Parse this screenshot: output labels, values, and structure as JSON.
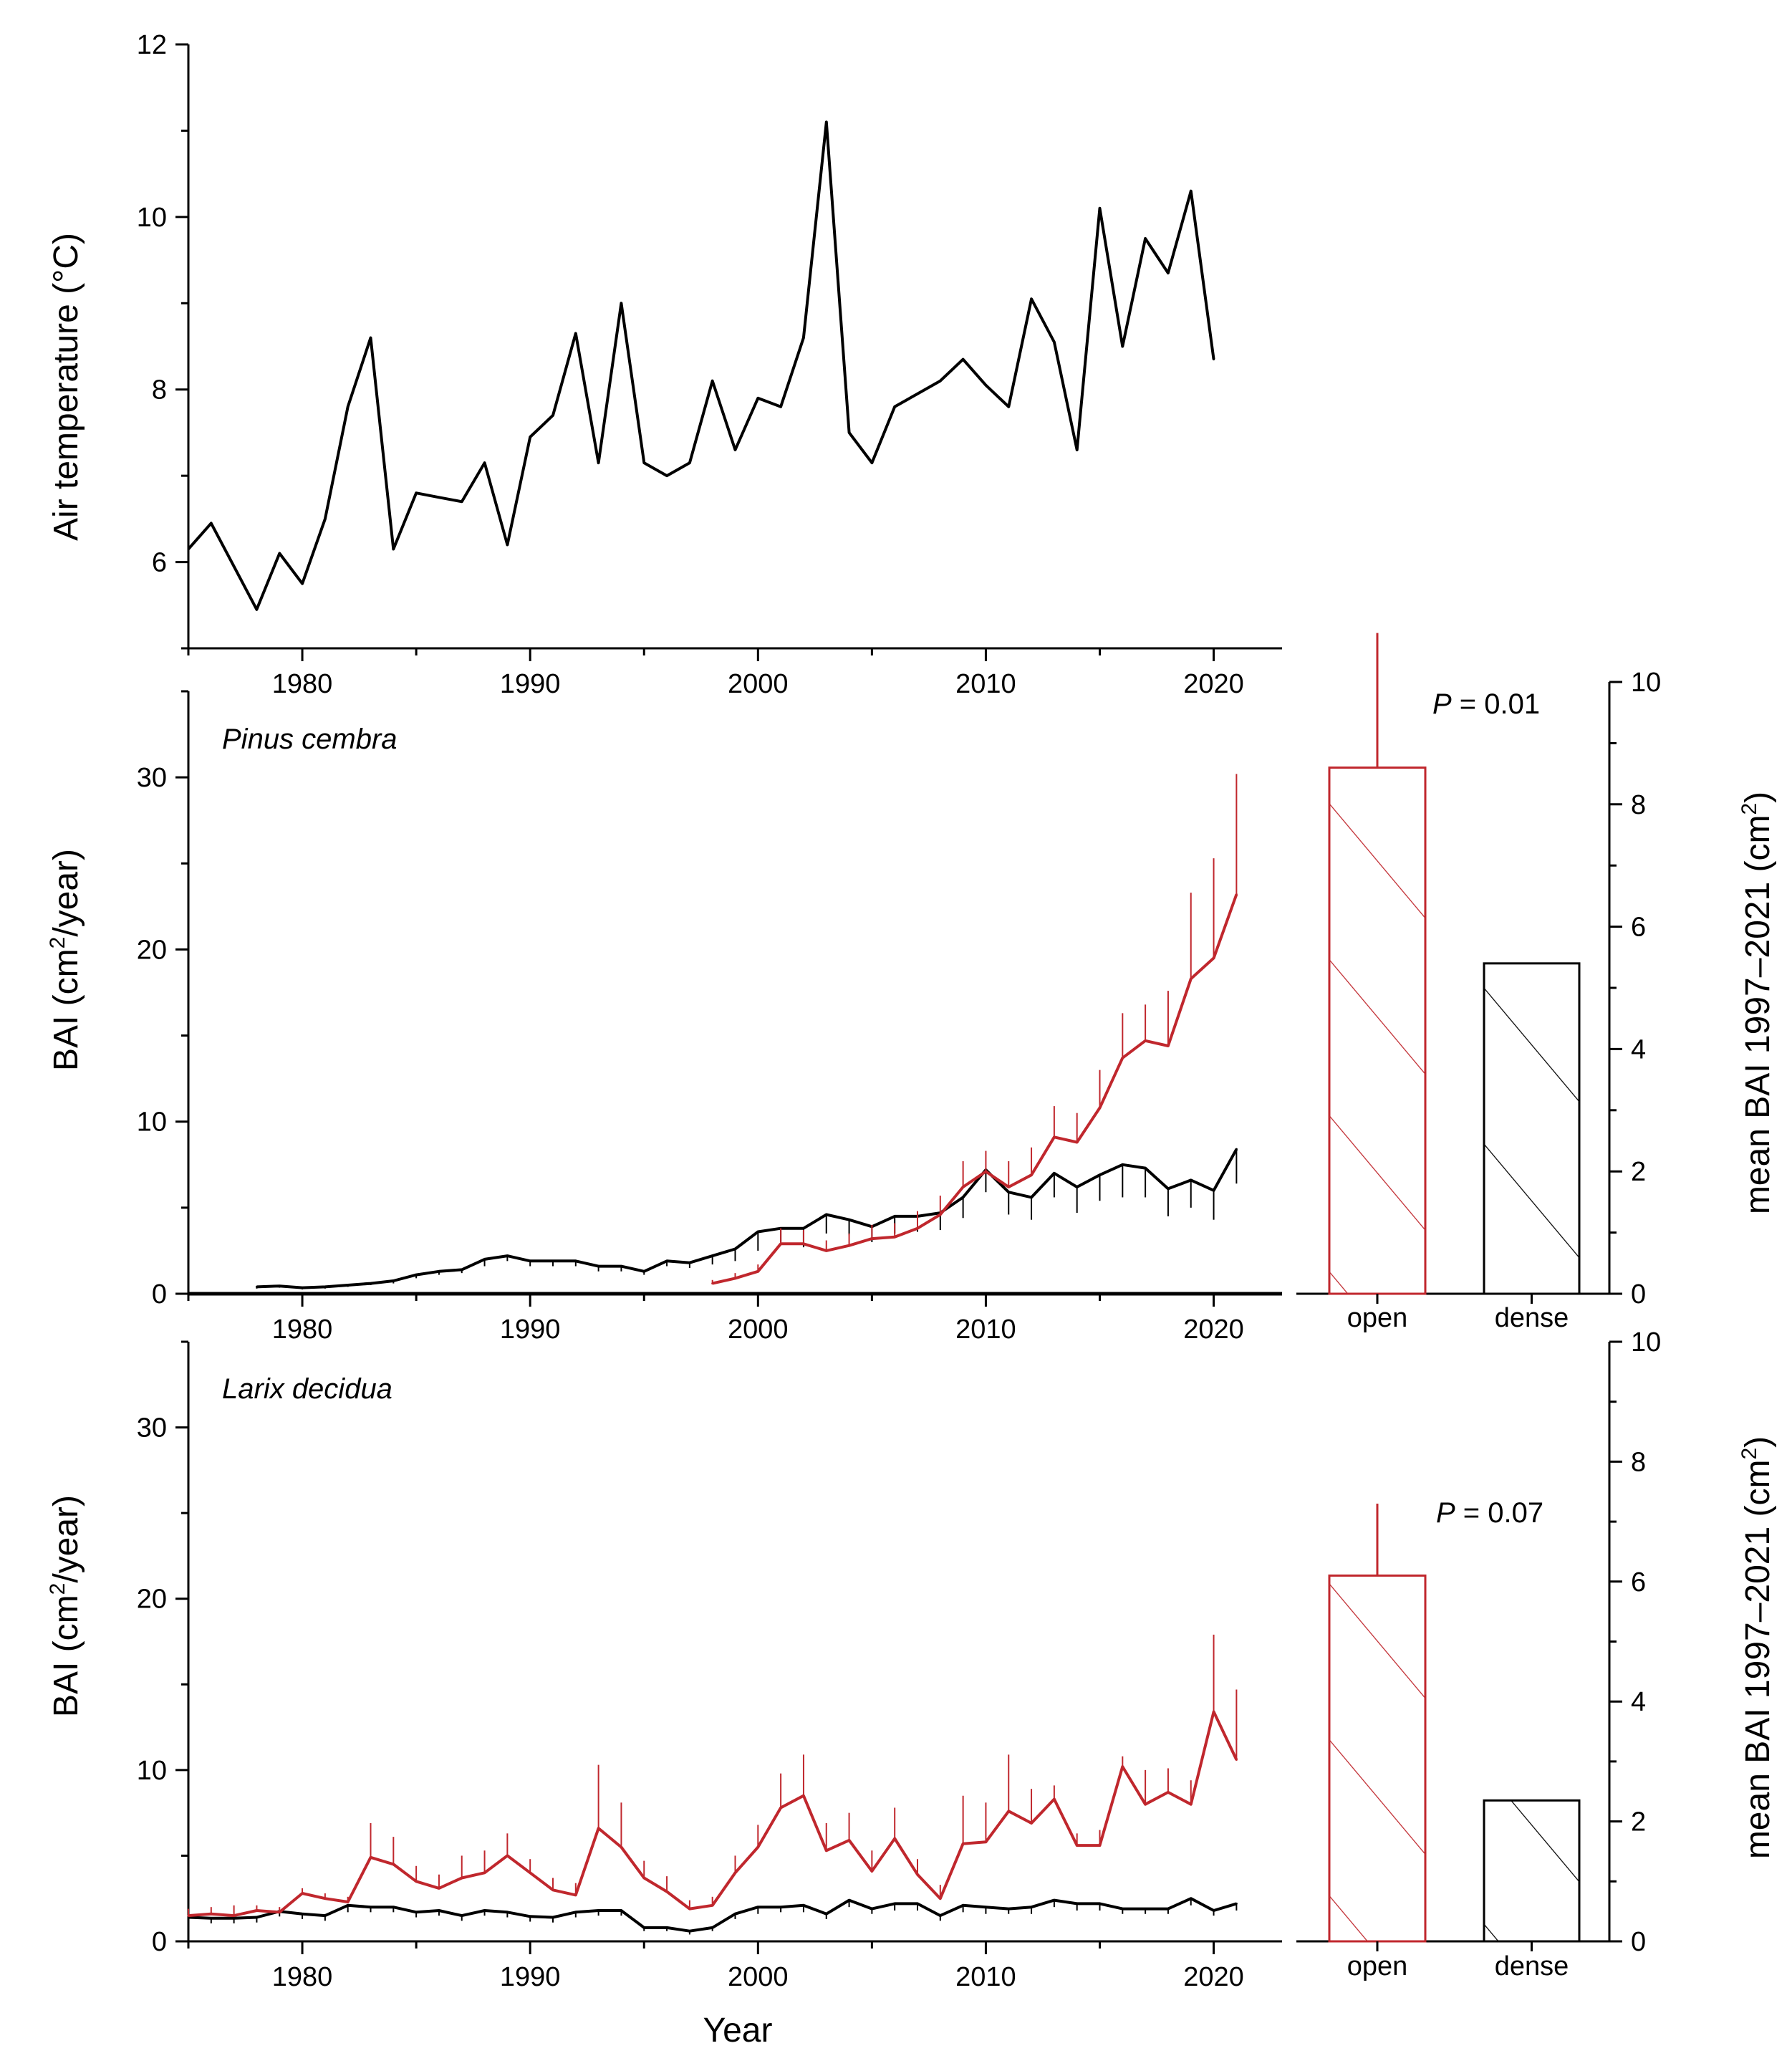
{
  "colors": {
    "open": "#c0272d",
    "dense": "#000000",
    "temperature": "#000000"
  },
  "chart_data": [
    {
      "type": "line",
      "panel": "temperature",
      "ylabel": "Air temperature (°C)",
      "xlim": [
        1975,
        2023
      ],
      "ylim": [
        5,
        12
      ],
      "xticks": [
        "1980",
        "1990",
        "2000",
        "2010",
        "2020"
      ],
      "yticks": [
        "6",
        "8",
        "10",
        "12"
      ],
      "series": [
        {
          "x": [
            1975,
            1976,
            1977,
            1978,
            1979,
            1980,
            1981,
            1982,
            1983,
            1984,
            1985,
            1986,
            1987,
            1988,
            1989,
            1990,
            1991,
            1992,
            1993,
            1994,
            1995,
            1996,
            1997,
            1998,
            1999,
            2000,
            2001,
            2002,
            2003,
            2004,
            2005,
            2006,
            2007,
            2008,
            2009,
            2010,
            2011,
            2012,
            2013,
            2014,
            2015,
            2016,
            2017,
            2018,
            2019,
            2020
          ],
          "values": [
            6.15,
            6.45,
            5.95,
            5.45,
            6.1,
            5.75,
            6.5,
            7.8,
            8.6,
            6.15,
            6.8,
            6.75,
            6.7,
            7.15,
            6.2,
            7.45,
            7.7,
            8.65,
            7.15,
            9.0,
            7.15,
            7.0,
            7.15,
            8.1,
            7.3,
            7.9,
            7.8,
            8.6,
            11.1,
            7.5,
            7.15,
            7.8,
            7.95,
            8.1,
            8.35,
            8.05,
            7.8,
            9.05,
            8.55,
            7.3,
            10.1,
            8.5,
            9.75,
            9.35,
            10.3,
            8.35
          ]
        }
      ]
    },
    {
      "type": "line",
      "panel": "pinus",
      "annotation": "Pinus cembra",
      "ylabel": "BAI (cm2/year)",
      "xlim": [
        1975,
        2023
      ],
      "ylim": [
        0,
        35
      ],
      "xticks": [
        "1980",
        "1990",
        "2000",
        "2010",
        "2020"
      ],
      "yticks": [
        "0",
        "10",
        "20",
        "30"
      ],
      "series": [
        {
          "key": "dense",
          "x": [
            1978,
            1979,
            1980,
            1981,
            1982,
            1983,
            1984,
            1985,
            1986,
            1987,
            1988,
            1989,
            1990,
            1991,
            1992,
            1993,
            1994,
            1995,
            1996,
            1997,
            1998,
            1999,
            2000,
            2001,
            2002,
            2003,
            2004,
            2005,
            2006,
            2007,
            2008,
            2009,
            2010,
            2011,
            2012,
            2013,
            2014,
            2015,
            2016,
            2017,
            2018,
            2019,
            2020,
            2021
          ],
          "values": [
            0.4,
            0.45,
            0.35,
            0.4,
            0.5,
            0.6,
            0.75,
            1.1,
            1.3,
            1.4,
            2.0,
            2.2,
            1.9,
            1.9,
            1.9,
            1.6,
            1.6,
            1.3,
            1.9,
            1.8,
            2.2,
            2.6,
            3.6,
            3.8,
            3.8,
            4.6,
            4.3,
            3.9,
            4.5,
            4.5,
            4.7,
            5.6,
            7.2,
            5.9,
            5.6,
            7.0,
            6.2,
            6.9,
            7.5,
            7.3,
            6.1,
            6.6,
            6.0,
            8.4
          ],
          "errors": [
            0.1,
            0.1,
            0.1,
            0.1,
            0.1,
            0.1,
            0.15,
            0.2,
            0.2,
            0.2,
            0.4,
            0.3,
            0.3,
            0.3,
            0.3,
            0.3,
            0.3,
            0.2,
            0.3,
            0.3,
            0.5,
            0.7,
            1.1,
            0.8,
            1.1,
            1.1,
            0.9,
            0.9,
            1.0,
            0.9,
            1.0,
            1.2,
            1.3,
            1.3,
            1.3,
            1.4,
            1.5,
            1.5,
            1.9,
            1.7,
            1.6,
            1.6,
            1.7,
            2.0
          ]
        },
        {
          "key": "open",
          "x": [
            1998,
            1999,
            2000,
            2001,
            2002,
            2003,
            2004,
            2005,
            2006,
            2007,
            2008,
            2009,
            2010,
            2011,
            2012,
            2013,
            2014,
            2015,
            2016,
            2017,
            2018,
            2019,
            2020,
            2021
          ],
          "values": [
            0.6,
            0.9,
            1.3,
            2.9,
            2.9,
            2.5,
            2.8,
            3.2,
            3.3,
            3.8,
            4.6,
            6.2,
            7.1,
            6.2,
            6.9,
            9.1,
            8.8,
            10.8,
            13.7,
            14.7,
            14.4,
            18.3,
            19.5,
            23.2
          ],
          "errors": [
            0.2,
            0.3,
            0.4,
            0.9,
            0.8,
            0.6,
            0.7,
            0.8,
            0.8,
            1.0,
            1.1,
            1.5,
            1.2,
            1.5,
            1.6,
            1.8,
            1.7,
            2.2,
            2.6,
            2.1,
            3.2,
            5.0,
            5.8,
            7.0
          ]
        }
      ]
    },
    {
      "type": "bar",
      "panel": "pinus-mean",
      "categories": [
        "open",
        "dense"
      ],
      "values": [
        8.6,
        5.4
      ],
      "errors": [
        2.2,
        0
      ],
      "ylabel": "mean BAI 1997–2021 (cm2)",
      "ylim": [
        0,
        10
      ],
      "yticks": [
        "0",
        "2",
        "4",
        "6",
        "8",
        "10"
      ],
      "annotation": "P = 0.01"
    },
    {
      "type": "line",
      "panel": "larix",
      "annotation": "Larix decidua",
      "ylabel": "BAI (cm2/year)",
      "xlabel": "Year",
      "xlim": [
        1975,
        2023
      ],
      "ylim": [
        0,
        35
      ],
      "xticks": [
        "1980",
        "1990",
        "2000",
        "2010",
        "2020"
      ],
      "yticks": [
        "0",
        "10",
        "20",
        "30"
      ],
      "series": [
        {
          "key": "dense",
          "x": [
            1975,
            1976,
            1977,
            1978,
            1979,
            1980,
            1981,
            1982,
            1983,
            1984,
            1985,
            1986,
            1987,
            1988,
            1989,
            1990,
            1991,
            1992,
            1993,
            1994,
            1995,
            1996,
            1997,
            1998,
            1999,
            2000,
            2001,
            2002,
            2003,
            2004,
            2005,
            2006,
            2007,
            2008,
            2009,
            2010,
            2011,
            2012,
            2013,
            2014,
            2015,
            2016,
            2017,
            2018,
            2019,
            2020,
            2021
          ],
          "values": [
            1.4,
            1.35,
            1.35,
            1.4,
            1.75,
            1.6,
            1.5,
            2.1,
            2.0,
            2.0,
            1.7,
            1.8,
            1.5,
            1.8,
            1.7,
            1.45,
            1.4,
            1.7,
            1.8,
            1.8,
            0.8,
            0.8,
            0.6,
            0.8,
            1.6,
            2.0,
            2.0,
            2.1,
            1.6,
            2.4,
            1.9,
            2.2,
            2.2,
            1.5,
            2.1,
            2.0,
            1.9,
            2.0,
            2.4,
            2.2,
            2.2,
            1.9,
            1.9,
            1.9,
            2.5,
            1.8,
            2.2
          ],
          "errors": [
            0.3,
            0.3,
            0.3,
            0.3,
            0.3,
            0.3,
            0.3,
            0.4,
            0.3,
            0.3,
            0.3,
            0.3,
            0.3,
            0.3,
            0.3,
            0.3,
            0.3,
            0.3,
            0.3,
            0.3,
            0.2,
            0.2,
            0.2,
            0.2,
            0.3,
            0.4,
            0.3,
            0.4,
            0.3,
            0.4,
            0.3,
            0.4,
            0.4,
            0.3,
            0.4,
            0.4,
            0.3,
            0.4,
            0.4,
            0.4,
            0.4,
            0.3,
            0.3,
            0.3,
            0.4,
            0.3,
            0.4
          ]
        },
        {
          "key": "open",
          "x": [
            1975,
            1976,
            1977,
            1978,
            1979,
            1980,
            1981,
            1982,
            1983,
            1984,
            1985,
            1986,
            1987,
            1988,
            1989,
            1990,
            1991,
            1992,
            1993,
            1994,
            1995,
            1996,
            1997,
            1998,
            1999,
            2000,
            2001,
            2002,
            2003,
            2004,
            2005,
            2006,
            2007,
            2008,
            2009,
            2010,
            2011,
            2012,
            2013,
            2014,
            2015,
            2016,
            2017,
            2018,
            2019,
            2020,
            2021
          ],
          "values": [
            1.5,
            1.6,
            1.5,
            1.8,
            1.7,
            2.8,
            2.5,
            2.3,
            4.9,
            4.5,
            3.5,
            3.1,
            3.7,
            4.0,
            5.0,
            4.0,
            3.0,
            2.7,
            6.6,
            5.5,
            3.7,
            2.9,
            1.9,
            2.1,
            4.0,
            5.5,
            7.8,
            8.5,
            5.3,
            5.9,
            4.1,
            6.0,
            3.9,
            2.5,
            5.7,
            5.8,
            7.6,
            6.9,
            8.3,
            5.6,
            5.6,
            10.2,
            8.0,
            8.7,
            8.0,
            13.4,
            10.6
          ],
          "errors": [
            0.4,
            0.4,
            0.6,
            0.3,
            0.3,
            0.3,
            0.3,
            0.3,
            2.0,
            1.6,
            0.9,
            0.8,
            1.3,
            1.3,
            1.3,
            0.8,
            0.7,
            0.7,
            3.7,
            2.6,
            1.0,
            0.9,
            0.5,
            0.5,
            1.0,
            1.3,
            2.0,
            2.4,
            1.6,
            1.6,
            1.2,
            1.8,
            0.9,
            0.8,
            2.8,
            2.3,
            3.3,
            2.0,
            0.8,
            0.7,
            0.9,
            0.6,
            2.0,
            1.4,
            1.4,
            4.5,
            4.1
          ]
        }
      ]
    },
    {
      "type": "bar",
      "panel": "larix-mean",
      "categories": [
        "open",
        "dense"
      ],
      "values": [
        6.1,
        2.35
      ],
      "errors": [
        1.2,
        0
      ],
      "ylabel": "mean BAI 1997–2021 (cm2)",
      "ylim": [
        0,
        10
      ],
      "yticks": [
        "0",
        "2",
        "4",
        "6",
        "8",
        "10"
      ],
      "annotation": "P = 0.07"
    }
  ]
}
